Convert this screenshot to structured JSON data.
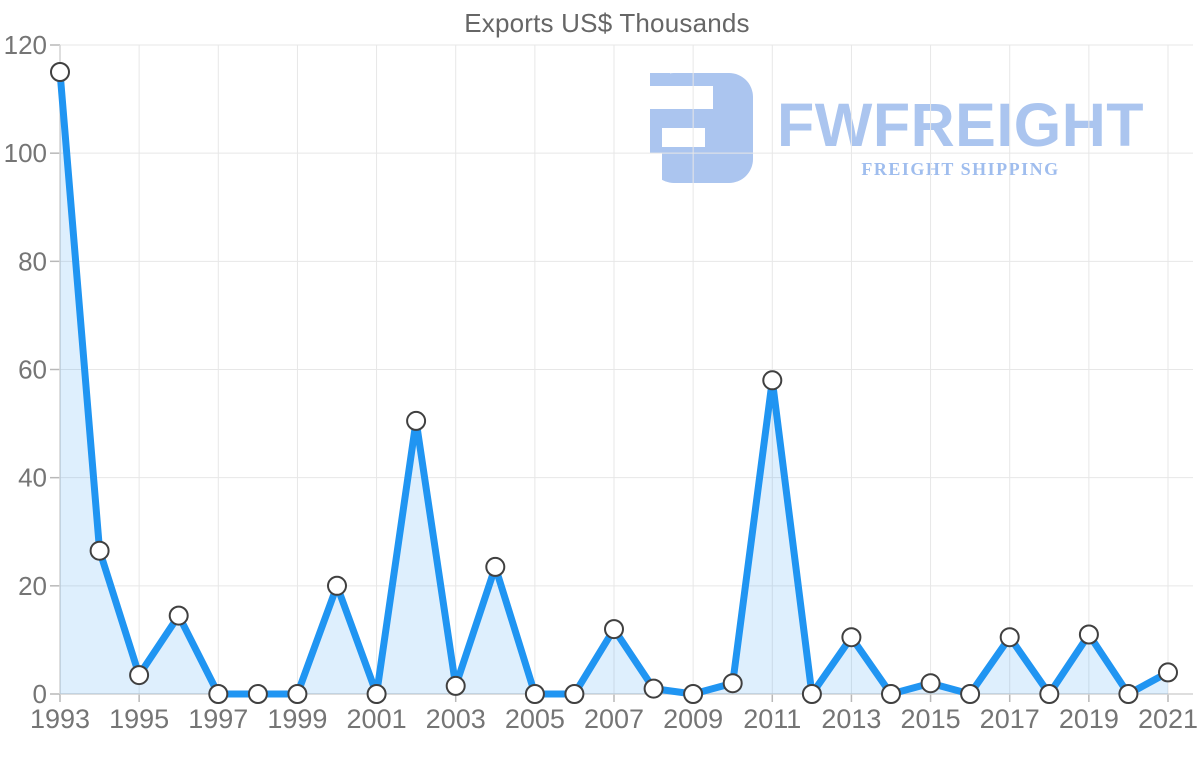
{
  "page": {
    "title": "Exports US$ Thousands"
  },
  "watermark": {
    "brand": "FWFREIGHT",
    "tagline": "FREIGHT SHIPPING",
    "icon": "fwfreight-glyph"
  },
  "colors": {
    "line": "#2095f2",
    "area_fill": "rgba(33,150,243,0.15)",
    "marker_fill": "#ffffff",
    "marker_stroke": "#404040",
    "grid": "#e7e7e7",
    "axis": "#d4d4d4",
    "tick": "#b8b8b8",
    "label": "#757575",
    "title": "#666666",
    "logo": "#abc5ef",
    "logo_tagline": "#9fbdee"
  },
  "chart_data": {
    "type": "area",
    "title": "Exports US$ Thousands",
    "xlabel": "",
    "ylabel": "",
    "x": [
      1993,
      1994,
      1995,
      1996,
      1997,
      1998,
      1999,
      2000,
      2001,
      2002,
      2003,
      2004,
      2005,
      2006,
      2007,
      2008,
      2009,
      2010,
      2011,
      2012,
      2013,
      2014,
      2015,
      2016,
      2017,
      2018,
      2019,
      2020,
      2021
    ],
    "series": [
      {
        "name": "Exports US$ Thousands",
        "values": [
          115,
          26.5,
          3.5,
          14.5,
          0,
          0,
          0,
          20,
          0,
          50.5,
          1.5,
          23.5,
          0,
          0,
          12,
          1,
          0,
          2,
          58,
          0,
          10.5,
          0,
          2,
          0,
          10.5,
          0,
          11,
          0,
          4
        ]
      }
    ],
    "xlim": [
      1993,
      2021
    ],
    "ylim": [
      0,
      120
    ],
    "yticks": [
      0,
      20,
      40,
      60,
      80,
      100,
      120
    ],
    "xticks": [
      1993,
      1995,
      1997,
      1999,
      2001,
      2003,
      2005,
      2007,
      2009,
      2011,
      2013,
      2015,
      2017,
      2019,
      2021
    ],
    "grid": true,
    "legend": "none",
    "marker": "circle"
  }
}
